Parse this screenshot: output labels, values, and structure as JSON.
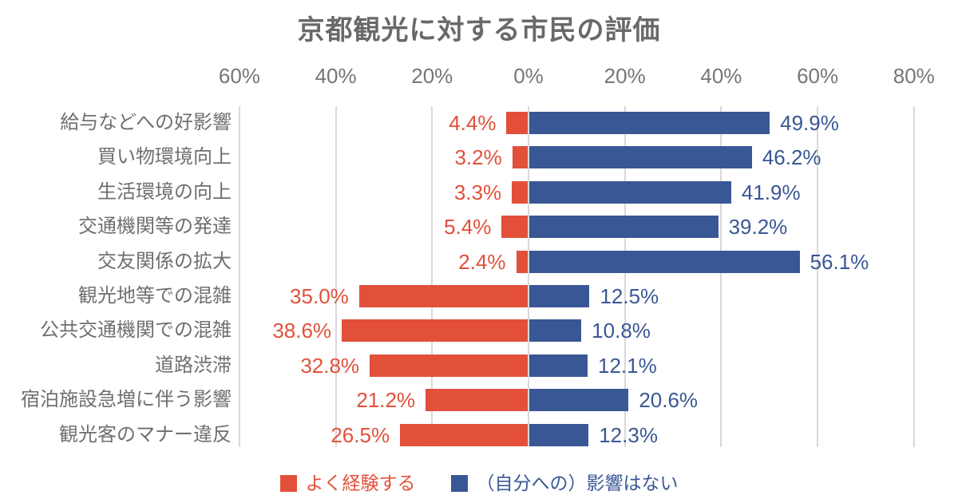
{
  "title": "京都観光に対する市民の評価",
  "colors": {
    "series_often_experience": "#e2503a",
    "series_no_impact": "#3a5795",
    "gridline": "#d9d9d9",
    "title_text": "#696969",
    "axis_text": "#767676",
    "category_text": "#6f6f6f",
    "background": "#ffffff"
  },
  "chart_data": {
    "type": "bar",
    "orientation": "horizontal-diverging",
    "title": "京都観光に対する市民の評価",
    "categories": [
      "給与などへの好影響",
      "買い物環境向上",
      "生活環境の向上",
      "交通機関等の発達",
      "交友関係の拡大",
      "観光地等での混雑",
      "公共交通機関での混雑",
      "道路渋滞",
      "宿泊施設急増に伴う影響",
      "観光客のマナー違反"
    ],
    "series": [
      {
        "name": "よく経験する",
        "color": "#e2503a",
        "direction": "left",
        "values": [
          4.4,
          3.2,
          3.3,
          5.4,
          2.4,
          35.0,
          38.6,
          32.8,
          21.2,
          26.5
        ]
      },
      {
        "name": "（自分への）影響はない",
        "color": "#3a5795",
        "direction": "right",
        "values": [
          49.9,
          46.2,
          41.9,
          39.2,
          56.1,
          12.5,
          10.8,
          12.1,
          20.6,
          12.3
        ]
      }
    ],
    "x_axis": {
      "tick_labels": [
        "60%",
        "40%",
        "20%",
        "0%",
        "20%",
        "40%",
        "60%",
        "80%"
      ],
      "tick_values": [
        -60,
        -40,
        -20,
        0,
        20,
        40,
        60,
        80
      ],
      "range": [
        -60,
        80
      ],
      "position": "top"
    },
    "value_label_format": "0.0%",
    "grid": true,
    "legend_position": "bottom"
  },
  "legend": {
    "items": [
      {
        "label": "よく経験する",
        "color": "#e2503a"
      },
      {
        "label": "（自分への）影響はない",
        "color": "#3a5795"
      }
    ]
  }
}
